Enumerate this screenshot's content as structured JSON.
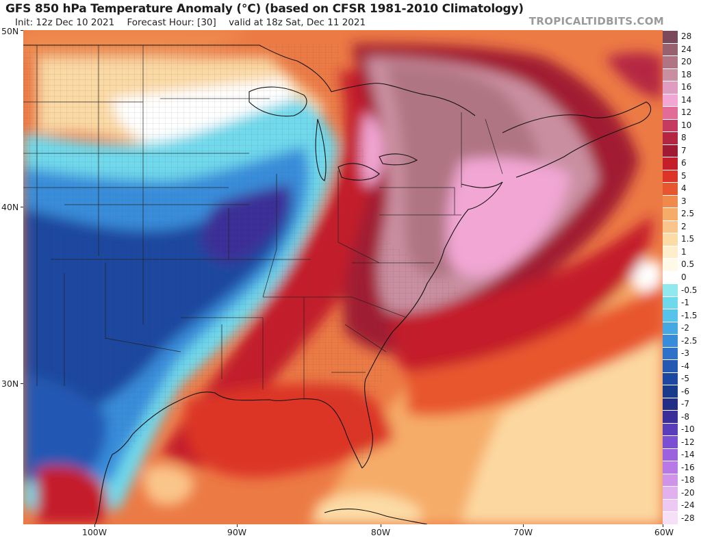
{
  "header": {
    "title": "GFS 850 hPa Temperature Anomaly (°C) (based on CFSR 1981-2010 Climatology)",
    "init": "Init: 12z Dec 10 2021",
    "forecast_hour": "Forecast Hour: [30]",
    "valid": "valid at 18z Sat, Dec 11 2021",
    "brand": "TROPICALTIDBITS.COM"
  },
  "axes": {
    "lat_labels": [
      "50N",
      "40N",
      "30N"
    ],
    "lon_labels": [
      "100W",
      "90W",
      "80W",
      "70W",
      "60W"
    ]
  },
  "colorbar": {
    "levels": [
      {
        "label": "28",
        "color": "#7a4a5c"
      },
      {
        "label": "24",
        "color": "#97616f"
      },
      {
        "label": "20",
        "color": "#b07582"
      },
      {
        "label": "18",
        "color": "#c98fa0"
      },
      {
        "label": "16",
        "color": "#df9cc0"
      },
      {
        "label": "14",
        "color": "#f1a6d3"
      },
      {
        "label": "12",
        "color": "#e36b98"
      },
      {
        "label": "10",
        "color": "#c43a61"
      },
      {
        "label": "8",
        "color": "#b52542"
      },
      {
        "label": "7",
        "color": "#a11a33"
      },
      {
        "label": "6",
        "color": "#c41e2a"
      },
      {
        "label": "5",
        "color": "#dc3527"
      },
      {
        "label": "4",
        "color": "#e8562e"
      },
      {
        "label": "3",
        "color": "#f08a4b"
      },
      {
        "label": "2.5",
        "color": "#f6ac69"
      },
      {
        "label": "2",
        "color": "#fac58a"
      },
      {
        "label": "1.5",
        "color": "#fcdca6"
      },
      {
        "label": "1",
        "color": "#feeecb"
      },
      {
        "label": "0.5",
        "color": "#fffae8"
      },
      {
        "label": "0",
        "color": "#ffffff"
      },
      {
        "label": "-0.5",
        "color": "#8fe9ee"
      },
      {
        "label": "-1",
        "color": "#6fd9ec"
      },
      {
        "label": "-1.5",
        "color": "#56c3ea"
      },
      {
        "label": "-2",
        "color": "#44a8e3"
      },
      {
        "label": "-2.5",
        "color": "#388ddb"
      },
      {
        "label": "-3",
        "color": "#2d71c8"
      },
      {
        "label": "-4",
        "color": "#2458b3"
      },
      {
        "label": "-5",
        "color": "#1c47a0"
      },
      {
        "label": "-6",
        "color": "#173a8c"
      },
      {
        "label": "-7",
        "color": "#222d86"
      },
      {
        "label": "-8",
        "color": "#3a2f98"
      },
      {
        "label": "-10",
        "color": "#5a3dbb"
      },
      {
        "label": "-12",
        "color": "#7a4fd4"
      },
      {
        "label": "-14",
        "color": "#9b62e0"
      },
      {
        "label": "-16",
        "color": "#b679e6"
      },
      {
        "label": "-18",
        "color": "#cf94ea"
      },
      {
        "label": "-20",
        "color": "#e0b0ef"
      },
      {
        "label": "-24",
        "color": "#ecc8f3"
      },
      {
        "label": "-28",
        "color": "#f6e0f8"
      }
    ]
  }
}
